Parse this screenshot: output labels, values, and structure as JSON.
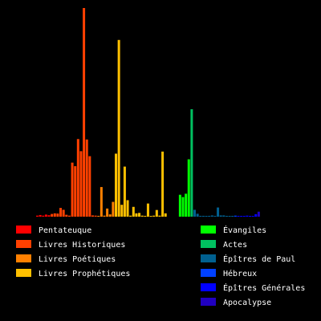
{
  "chart_data": {
    "type": "bar",
    "title": "",
    "xlabel": "",
    "ylabel": "",
    "grid": false,
    "legend_position": "bottom",
    "ylim": [
      0,
      100
    ],
    "series": [
      {
        "name": "Pentateuque",
        "color": "#ff0000",
        "values": [
          0.5,
          0.8,
          0.5,
          1.0,
          0.7
        ]
      },
      {
        "name": "Livres Historiques",
        "color": "#ff4000",
        "values": [
          1.3,
          1.6,
          1.5,
          4.2,
          3.3,
          0.9,
          0.5,
          25.9,
          24.2,
          37.2,
          31.4,
          100.0,
          37.0,
          29.0,
          0.6,
          0.5
        ]
      },
      {
        "name": "Livres Poétiques",
        "color": "#ff8000",
        "values": [
          0.4,
          14.2,
          0.5,
          3.9,
          1.1,
          7.1
        ]
      },
      {
        "name": "Livres Prophétiques",
        "color": "#ffc000",
        "values": [
          30.2,
          84.7,
          5.7,
          24.0,
          7.9,
          0.5,
          4.7,
          1.6,
          1.8,
          0.5,
          0.4,
          6.3,
          0.3,
          0.5,
          3.2,
          0.5,
          31.2,
          1.6
        ]
      },
      {
        "name": "Évangiles",
        "color": "#00ff00",
        "values": [
          10.5,
          9.4,
          11.0,
          27.5
        ]
      },
      {
        "name": "Actes",
        "color": "#00c060",
        "values": [
          51.5
        ]
      },
      {
        "name": "Épîtres de Paul",
        "color": "#006090",
        "values": [
          3.3,
          1.4,
          0.4,
          0.4,
          0.3,
          0.4,
          0.6,
          0.4,
          4.4,
          0.6,
          0.6,
          0.3,
          0.3,
          0.3
        ]
      },
      {
        "name": "Hébreux",
        "color": "#0040ff",
        "values": [
          0.5
        ]
      },
      {
        "name": "Épîtres Générales",
        "color": "#0000ff",
        "values": [
          0.4,
          0.3,
          0.3,
          0.5,
          0.3,
          0.3,
          1.2
        ]
      },
      {
        "name": "Apocalypse",
        "color": "#2000c0",
        "values": [
          2.4
        ]
      }
    ]
  }
}
